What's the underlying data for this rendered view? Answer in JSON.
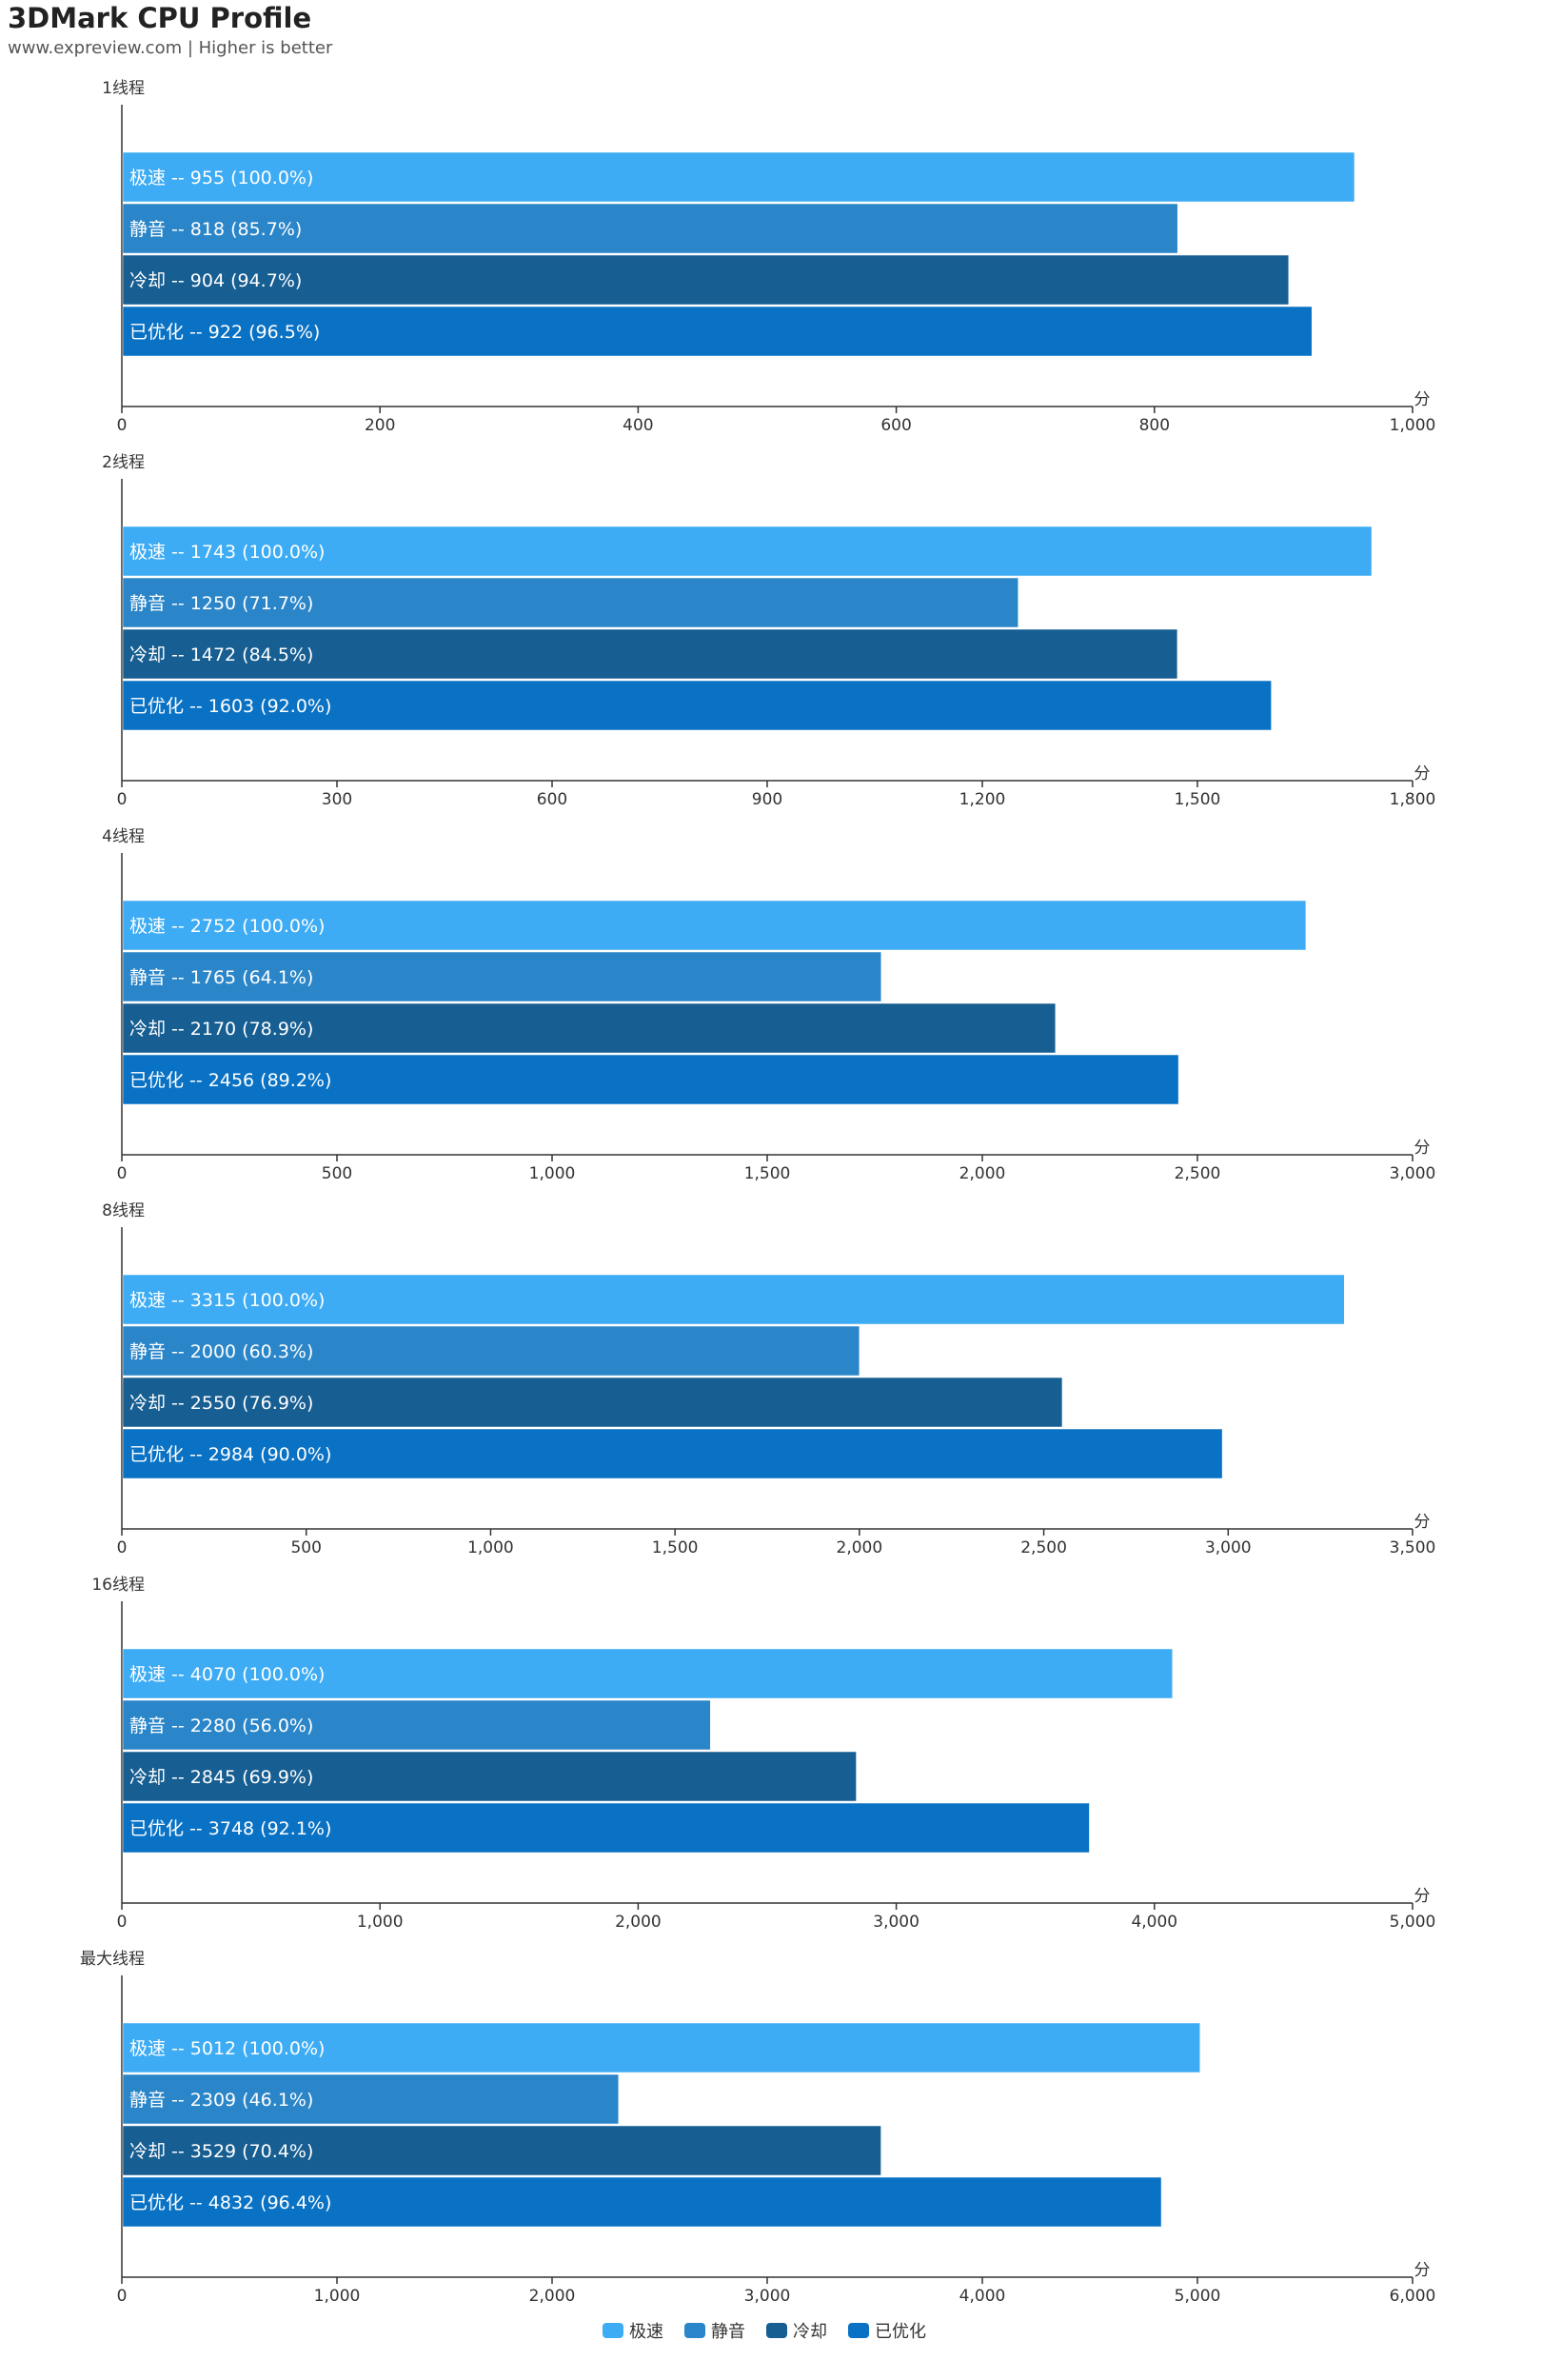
{
  "title": "3DMark CPU Profile",
  "subtitle": "www.expreview.com | Higher is better",
  "chart_data": {
    "type": "bar",
    "orientation": "horizontal",
    "unit": "分",
    "legend_position": "bottom-center",
    "series": [
      {
        "name": "极速",
        "color": "#3eacf4"
      },
      {
        "name": "静音",
        "color": "#2b86c9"
      },
      {
        "name": "冷却",
        "color": "#175e92"
      },
      {
        "name": "已优化",
        "color": "#0a72c4"
      }
    ],
    "panels": [
      {
        "label": "1线程",
        "xlim": [
          0,
          1000
        ],
        "ticks": [
          "0",
          "200",
          "400",
          "600",
          "800",
          "1,000"
        ],
        "values": [
          955,
          818,
          904,
          922
        ],
        "labels": [
          "极速  --  955 (100.0%)",
          "静音  --  818 (85.7%)",
          "冷却  --  904 (94.7%)",
          "已优化  --  922 (96.5%)"
        ]
      },
      {
        "label": "2线程",
        "xlim": [
          0,
          1800
        ],
        "ticks": [
          "0",
          "300",
          "600",
          "900",
          "1,200",
          "1,500",
          "1,800"
        ],
        "values": [
          1743,
          1250,
          1472,
          1603
        ],
        "labels": [
          "极速  --  1743 (100.0%)",
          "静音  --  1250 (71.7%)",
          "冷却  --  1472 (84.5%)",
          "已优化  --  1603 (92.0%)"
        ]
      },
      {
        "label": "4线程",
        "xlim": [
          0,
          3000
        ],
        "ticks": [
          "0",
          "500",
          "1,000",
          "1,500",
          "2,000",
          "2,500",
          "3,000"
        ],
        "values": [
          2752,
          1765,
          2170,
          2456
        ],
        "labels": [
          "极速  --  2752 (100.0%)",
          "静音  --  1765 (64.1%)",
          "冷却  --  2170 (78.9%)",
          "已优化  --  2456 (89.2%)"
        ]
      },
      {
        "label": "8线程",
        "xlim": [
          0,
          3500
        ],
        "ticks": [
          "0",
          "500",
          "1,000",
          "1,500",
          "2,000",
          "2,500",
          "3,000",
          "3,500"
        ],
        "values": [
          3315,
          2000,
          2550,
          2984
        ],
        "labels": [
          "极速  --  3315 (100.0%)",
          "静音  --  2000 (60.3%)",
          "冷却  --  2550 (76.9%)",
          "已优化  --  2984 (90.0%)"
        ]
      },
      {
        "label": "16线程",
        "xlim": [
          0,
          5000
        ],
        "ticks": [
          "0",
          "1,000",
          "2,000",
          "3,000",
          "4,000",
          "5,000"
        ],
        "values": [
          4070,
          2280,
          2845,
          3748
        ],
        "labels": [
          "极速  --  4070 (100.0%)",
          "静音  --  2280 (56.0%)",
          "冷却  --  2845 (69.9%)",
          "已优化  --  3748 (92.1%)"
        ]
      },
      {
        "label": "最大线程",
        "xlim": [
          0,
          6000
        ],
        "ticks": [
          "0",
          "1,000",
          "2,000",
          "3,000",
          "4,000",
          "5,000",
          "6,000"
        ],
        "values": [
          5012,
          2309,
          3529,
          4832
        ],
        "labels": [
          "极速  --  5012 (100.0%)",
          "静音  --  2309 (46.1%)",
          "冷却  --  3529 (70.4%)",
          "已优化  --  4832 (96.4%)"
        ]
      }
    ]
  }
}
